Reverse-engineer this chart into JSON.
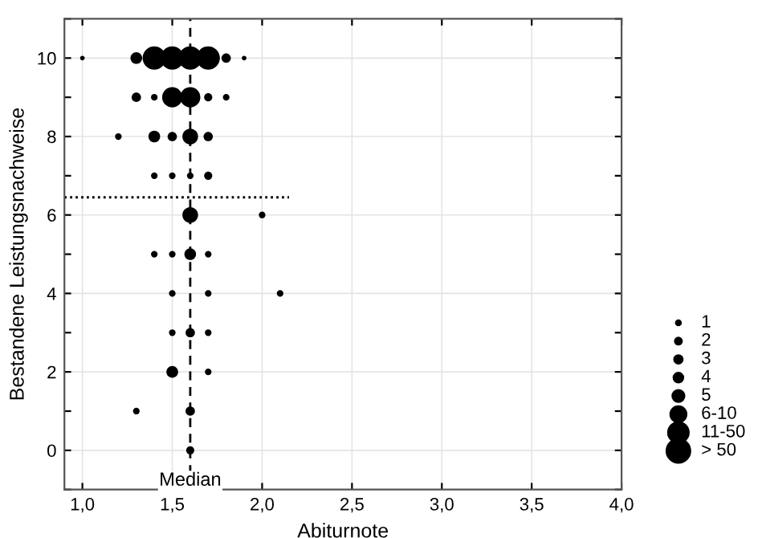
{
  "chart_data": {
    "type": "bubble",
    "xlabel": "Abiturnote",
    "ylabel": "Bestandene Leistungsnachweise",
    "series": [
      {
        "color": "#000000",
        "x": [
          1.0,
          1.3,
          1.4,
          1.5,
          1.6,
          1.7,
          1.8,
          1.9,
          1.3,
          1.4,
          1.5,
          1.6,
          1.7,
          1.8,
          1.2,
          1.4,
          1.5,
          1.6,
          1.7,
          1.4,
          1.5,
          1.6,
          1.7,
          1.6,
          2.0,
          1.4,
          1.5,
          1.6,
          1.7,
          1.5,
          1.7,
          2.1,
          1.5,
          1.6,
          1.7,
          1.5,
          1.7,
          1.3,
          1.6,
          1.6
        ],
        "values": [
          10,
          10,
          10,
          10,
          10,
          10,
          10,
          10,
          9,
          9,
          9,
          9,
          9,
          9,
          8,
          8,
          8,
          8,
          8,
          7,
          7,
          7,
          7,
          6,
          6,
          5,
          5,
          5,
          5,
          4,
          4,
          4,
          3,
          3,
          3,
          2,
          2,
          1,
          1,
          0
        ],
        "sizes": [
          0.04,
          0.25,
          1,
          1,
          1,
          1,
          0.16,
          0.04,
          0.16,
          0.08,
          0.75,
          0.75,
          0.12,
          0.08,
          0.08,
          0.25,
          0.16,
          0.45,
          0.16,
          0.08,
          0.08,
          0.08,
          0.12,
          0.45,
          0.08,
          0.08,
          0.08,
          0.25,
          0.08,
          0.08,
          0.08,
          0.08,
          0.08,
          0.16,
          0.08,
          0.25,
          0.08,
          0.08,
          0.16,
          0.12
        ]
      },
      {
        "type": "line",
        "color": "#000000",
        "line_style": "dotted",
        "marker": "none",
        "x": [
          0.9,
          2.15
        ],
        "values": [
          6.45,
          6.45
        ]
      }
    ],
    "size_legend": [
      {
        "value": 0.04,
        "label": "1"
      },
      {
        "value": 0.08,
        "label": "2"
      },
      {
        "value": 0.12,
        "label": "3"
      },
      {
        "value": 0.16,
        "label": "4"
      },
      {
        "value": 0.25,
        "label": "5"
      },
      {
        "value": 0.45,
        "label": "6-10"
      },
      {
        "value": 0.75,
        "label": "11-50"
      },
      {
        "value": 1,
        "label": "> 50"
      }
    ],
    "ref_lines": [
      {
        "axis": "x",
        "value": 1.6,
        "label": "Median",
        "line_style": "dashed",
        "color": "#000000"
      }
    ],
    "xlim": [
      0.9,
      4.0
    ],
    "xticks": [
      {
        "value": 1.0,
        "label": "1,0"
      },
      {
        "value": 1.5,
        "label": "1,5"
      },
      {
        "value": 2.0,
        "label": "2,0"
      },
      {
        "value": 2.5,
        "label": "2,5"
      },
      {
        "value": 3.0,
        "label": "3,0"
      },
      {
        "value": 3.5,
        "label": "3,5"
      },
      {
        "value": 4.0,
        "label": "4,0"
      }
    ],
    "ylim": [
      -1,
      11
    ],
    "yticks": [
      {
        "value": -1,
        "label": null
      },
      0,
      {
        "value": 1,
        "label": null
      },
      2,
      {
        "value": 3,
        "label": null
      },
      4,
      {
        "value": 5,
        "label": null
      },
      6,
      {
        "value": 7,
        "label": null
      },
      8,
      {
        "value": 9,
        "label": null
      },
      10,
      {
        "value": 11,
        "label": null
      }
    ],
    "grid": true
  }
}
